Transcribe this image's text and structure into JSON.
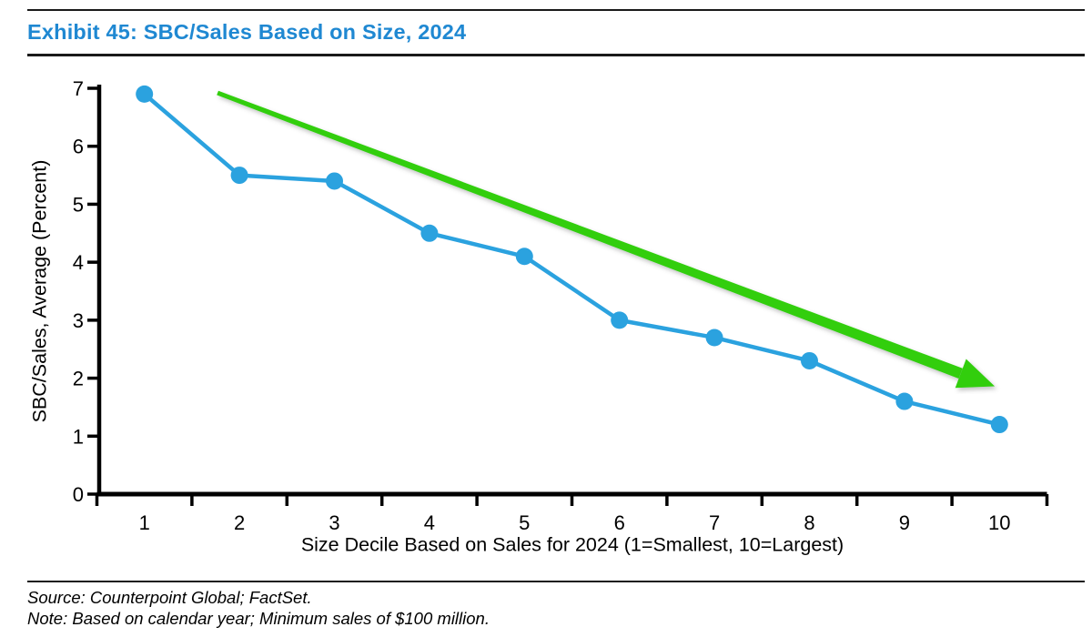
{
  "title": "Exhibit 45: SBC/Sales Based on Size, 2024",
  "source_line": "Source: Counterpoint Global; FactSet.",
  "note_line": "Note: Based on calendar year; Minimum sales of $100 million.",
  "colors": {
    "title_blue": "#1f88d2",
    "series_blue": "#2ba2df",
    "arrow_green": "#30ce0c",
    "axis_black": "#000000"
  },
  "chart_data": {
    "type": "line",
    "title": "Exhibit 45: SBC/Sales Based on Size, 2024",
    "x": [
      1,
      2,
      3,
      4,
      5,
      6,
      7,
      8,
      9,
      10
    ],
    "series": [
      {
        "name": "SBC/Sales, Average (Percent)",
        "values": [
          6.9,
          5.5,
          5.4,
          4.5,
          4.1,
          3.0,
          2.7,
          2.3,
          1.6,
          1.2
        ]
      }
    ],
    "xlabel": "Size Decile Based on Sales for 2024 (1=Smallest, 10=Largest)",
    "ylabel": "SBC/Sales, Average (Percent)",
    "xtick_labels": [
      "1",
      "2",
      "3",
      "4",
      "5",
      "6",
      "7",
      "8",
      "9",
      "10"
    ],
    "yticks": [
      0,
      1,
      2,
      3,
      4,
      5,
      6,
      7
    ],
    "ylim": [
      0,
      7
    ],
    "grid": false,
    "legend": "none",
    "marker": "circle",
    "annotations": [
      {
        "type": "arrow",
        "label": "downward-trend-arrow",
        "from": {
          "x": 1.77,
          "y": 6.92
        },
        "to": {
          "x": 9.95,
          "y": 1.86
        },
        "color": "#30ce0c"
      }
    ]
  }
}
